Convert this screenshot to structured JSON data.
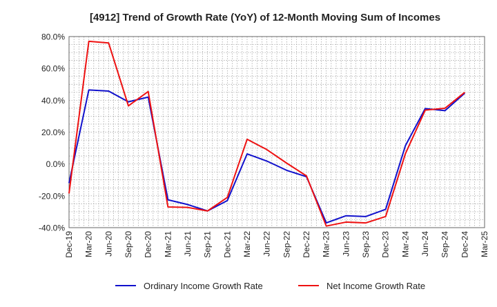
{
  "chart_data": {
    "type": "line",
    "title": "[4912]  Trend of Growth Rate (YoY) of 12-Month Moving Sum of Incomes",
    "xlabel": "",
    "ylabel": "",
    "ylim": [
      -40,
      80
    ],
    "y_ticks": [
      80,
      60,
      40,
      20,
      0,
      -20,
      -40
    ],
    "y_tick_labels": [
      "80.0%",
      "60.0%",
      "40.0%",
      "20.0%",
      "0.0%",
      "-20.0%",
      "-40.0%"
    ],
    "grid": true,
    "legend_position": "bottom",
    "x": [
      "Dec-19",
      "Mar-20",
      "Jun-20",
      "Sep-20",
      "Dec-20",
      "Mar-21",
      "Jun-21",
      "Sep-21",
      "Dec-21",
      "Mar-22",
      "Jun-22",
      "Sep-22",
      "Dec-22",
      "Mar-23",
      "Jun-23",
      "Sep-23",
      "Dec-23",
      "Mar-24",
      "Jun-24",
      "Sep-24",
      "Dec-24",
      "Mar-25"
    ],
    "series": [
      {
        "name": "Ordinary Income Growth Rate",
        "color": "#1010cc",
        "values": [
          -12,
          46.5,
          45.8,
          39,
          42,
          -22.5,
          -25.5,
          -29.5,
          -23,
          6.3,
          1.8,
          -4,
          -8,
          -37,
          -32.5,
          -33,
          -28.5,
          11.5,
          34.8,
          33.5,
          44.5,
          null
        ]
      },
      {
        "name": "Net Income Growth Rate",
        "color": "#ee1111",
        "values": [
          -18.5,
          77,
          76,
          36.5,
          45.5,
          -27,
          -27.3,
          -29.5,
          -21,
          15.5,
          9,
          0.5,
          -7.5,
          -39,
          -36.5,
          -37,
          -33,
          6.5,
          33.8,
          35,
          45,
          null
        ]
      }
    ]
  }
}
